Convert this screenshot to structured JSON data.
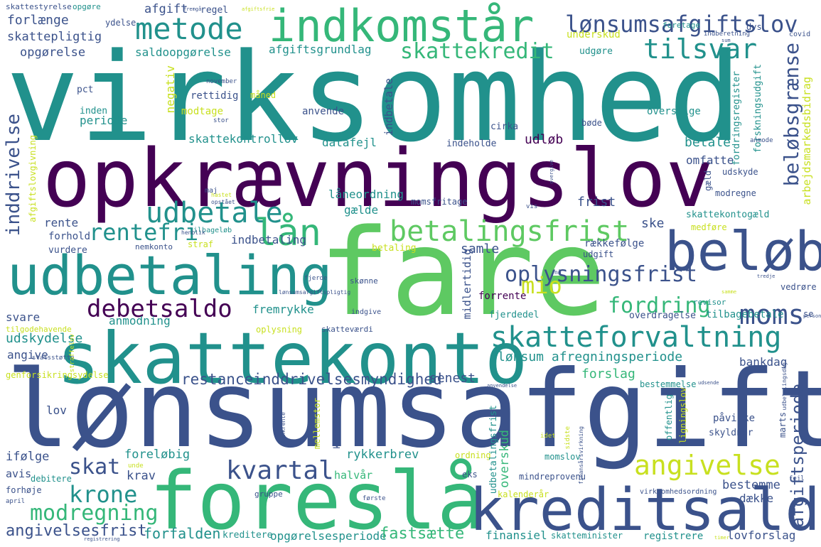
{
  "colors": {
    "dark_purple": "#440154",
    "indigo": "#3b528b",
    "teal": "#21918c",
    "green": "#5ec962",
    "lime": "#c8e020"
  },
  "words": [
    {
      "text": "virksomhed",
      "color": "#21918c"
    },
    {
      "text": "opkrævningslov",
      "color": "#440154"
    },
    {
      "text": "fare",
      "color": "#5ec962"
    },
    {
      "text": "lønsumsafgift",
      "color": "#3b528b"
    },
    {
      "text": "skattekonto",
      "color": "#21918c"
    },
    {
      "text": "foreslå",
      "color": "#35b779"
    },
    {
      "text": "kreditsaldo",
      "color": "#3b528b"
    },
    {
      "text": "indkomstår",
      "color": "#35b779"
    },
    {
      "text": "beløb",
      "color": "#3b528b"
    },
    {
      "text": "udbetaling",
      "color": "#21918c"
    },
    {
      "text": "betalingsfrist",
      "color": "#5ec962"
    },
    {
      "text": "skatteforvaltning",
      "color": "#21918c"
    },
    {
      "text": "lønsumsafgiftslov",
      "color": "#3b528b"
    },
    {
      "text": "metode",
      "color": "#21918c"
    },
    {
      "text": "tilsvar",
      "color": "#21918c"
    },
    {
      "text": "skattekredit",
      "color": "#35b779"
    },
    {
      "text": "lån",
      "color": "#35b779"
    },
    {
      "text": "udbetale",
      "color": "#21918c"
    },
    {
      "text": "rentefri",
      "color": "#21918c"
    },
    {
      "text": "debetsaldo",
      "color": "#440154"
    },
    {
      "text": "moms",
      "color": "#3b528b"
    },
    {
      "text": "oplysningsfrist",
      "color": "#3b528b"
    },
    {
      "text": "fordring",
      "color": "#35b779"
    },
    {
      "text": "angivelse",
      "color": "#c8e020"
    },
    {
      "text": "kvartal",
      "color": "#3b528b"
    },
    {
      "text": "krone",
      "color": "#21918c"
    },
    {
      "text": "modregning",
      "color": "#35b779"
    },
    {
      "text": "skat",
      "color": "#3b528b"
    },
    {
      "text": "mio",
      "color": "#c8e020"
    },
    {
      "text": "beløbsgrænse",
      "color": "#3b528b"
    },
    {
      "text": "inddrivelse",
      "color": "#3b528b"
    },
    {
      "text": "afgiftsperiode",
      "color": "#3b528b"
    },
    {
      "text": "restanceinddrivelsesmyndighed",
      "color": "#3b528b"
    },
    {
      "text": "lønsum afregningsperiode",
      "color": "#21918c"
    },
    {
      "text": "angivelsesfrist",
      "color": "#3b528b"
    },
    {
      "text": "forfalden",
      "color": "#21918c"
    },
    {
      "text": "opgørelsesperiode",
      "color": "#21918c"
    },
    {
      "text": "fastsætte",
      "color": "#35b779"
    },
    {
      "text": "afgiftsgrundlag",
      "color": "#21918c"
    },
    {
      "text": "saldoopgørelse",
      "color": "#21918c"
    },
    {
      "text": "skattepligtig",
      "color": "#3b528b"
    },
    {
      "text": "forlænge",
      "color": "#3b528b"
    },
    {
      "text": "opgørelse",
      "color": "#3b528b"
    },
    {
      "text": "afgift",
      "color": "#3b528b"
    },
    {
      "text": "regel",
      "color": "#3b528b"
    },
    {
      "text": "skattekontrollov",
      "color": "#21918c"
    },
    {
      "text": "datafejl",
      "color": "#21918c"
    },
    {
      "text": "indeholde",
      "color": "#3b528b"
    },
    {
      "text": "udløb",
      "color": "#440154"
    },
    {
      "text": "betale",
      "color": "#21918c"
    },
    {
      "text": "omfatte",
      "color": "#3b528b"
    },
    {
      "text": "låneordning",
      "color": "#21918c"
    },
    {
      "text": "gælde",
      "color": "#21918c"
    },
    {
      "text": "momsfritage",
      "color": "#3b528b"
    },
    {
      "text": "frist",
      "color": "#3b528b"
    },
    {
      "text": "ske",
      "color": "#3b528b"
    },
    {
      "text": "indbetaling",
      "color": "#3b528b"
    },
    {
      "text": "samle",
      "color": "#3b528b"
    },
    {
      "text": "rækkefølge",
      "color": "#3b528b"
    },
    {
      "text": "fremrykke",
      "color": "#21918c"
    },
    {
      "text": "anmodning",
      "color": "#21918c"
    },
    {
      "text": "udskydelse",
      "color": "#21918c"
    },
    {
      "text": "angive",
      "color": "#3b528b"
    },
    {
      "text": "bankdag",
      "color": "#3b528b"
    },
    {
      "text": "forslag",
      "color": "#35b779"
    },
    {
      "text": "senest",
      "color": "#3b528b"
    },
    {
      "text": "lov",
      "color": "#3b528b"
    },
    {
      "text": "foreløbig",
      "color": "#21918c"
    },
    {
      "text": "rykkerbrev",
      "color": "#21918c"
    },
    {
      "text": "overskud",
      "color": "#35b779"
    },
    {
      "text": "bestemme",
      "color": "#3b528b"
    },
    {
      "text": "dække",
      "color": "#3b528b"
    },
    {
      "text": "krav",
      "color": "#3b528b"
    },
    {
      "text": "halvår",
      "color": "#35b779"
    },
    {
      "text": "kreditere",
      "color": "#21918c"
    },
    {
      "text": "finansiel",
      "color": "#21918c"
    },
    {
      "text": "registrere",
      "color": "#21918c"
    },
    {
      "text": "lovforslag",
      "color": "#3b528b"
    },
    {
      "text": "ifølge",
      "color": "#3b528b"
    },
    {
      "text": "avis",
      "color": "#3b528b"
    },
    {
      "text": "svare",
      "color": "#3b528b"
    },
    {
      "text": "rente",
      "color": "#3b528b"
    },
    {
      "text": "forhold",
      "color": "#3b528b"
    },
    {
      "text": "vurdere",
      "color": "#3b528b"
    },
    {
      "text": "periode",
      "color": "#21918c"
    },
    {
      "text": "inden",
      "color": "#21918c"
    },
    {
      "text": "pct",
      "color": "#3b528b"
    },
    {
      "text": "negativ",
      "color": "#c8e020"
    },
    {
      "text": "rettidig",
      "color": "#3b528b"
    },
    {
      "text": "modtage",
      "color": "#c8e020"
    },
    {
      "text": "anvende",
      "color": "#3b528b"
    },
    {
      "text": "bøde",
      "color": "#3b528b"
    },
    {
      "text": "overstige",
      "color": "#21918c"
    },
    {
      "text": "cirka",
      "color": "#3b528b"
    },
    {
      "text": "udgøre",
      "color": "#21918c"
    },
    {
      "text": "underskud",
      "color": "#c8e020"
    },
    {
      "text": "foretage",
      "color": "#21918c"
    },
    {
      "text": "dvs",
      "color": "#3b528b"
    },
    {
      "text": "udskyde",
      "color": "#3b528b"
    },
    {
      "text": "modregne",
      "color": "#3b528b"
    },
    {
      "text": "skattekontogæld",
      "color": "#21918c"
    },
    {
      "text": "medføre",
      "color": "#c8e020"
    },
    {
      "text": "udgift",
      "color": "#3b528b"
    },
    {
      "text": "forrente",
      "color": "#440154"
    },
    {
      "text": "fjerdedel",
      "color": "#21918c"
    },
    {
      "text": "overdragelse",
      "color": "#3b528b"
    },
    {
      "text": "tilbagebetale",
      "color": "#21918c"
    },
    {
      "text": "revisor",
      "color": "#21918c"
    },
    {
      "text": "se",
      "color": "#3b528b"
    },
    {
      "text": "tilgodehavende",
      "color": "#c8e020"
    },
    {
      "text": "oplysning",
      "color": "#c8e020"
    },
    {
      "text": "skatteværdi",
      "color": "#3b528b"
    },
    {
      "text": "genforsikringsydelse",
      "color": "#c8e020"
    },
    {
      "text": "bestemmelse",
      "color": "#21918c"
    },
    {
      "text": "påvirke",
      "color": "#3b528b"
    },
    {
      "text": "skyldner",
      "color": "#3b528b"
    },
    {
      "text": "ordning",
      "color": "#c8e020"
    },
    {
      "text": "momslov",
      "color": "#21918c"
    },
    {
      "text": "mindreprovenu",
      "color": "#3b528b"
    },
    {
      "text": "kalenderår",
      "color": "#c8e020"
    },
    {
      "text": "skatteminister",
      "color": "#21918c"
    },
    {
      "text": "debitere",
      "color": "#21918c"
    },
    {
      "text": "forhøje",
      "color": "#3b528b"
    },
    {
      "text": "gruppe",
      "color": "#3b528b"
    },
    {
      "text": "eks",
      "color": "#3b528b"
    },
    {
      "text": "straf",
      "color": "#c8e020"
    },
    {
      "text": "nemkonto",
      "color": "#3b528b"
    },
    {
      "text": "betaling",
      "color": "#c8e020"
    },
    {
      "text": "skønne",
      "color": "#3b528b"
    },
    {
      "text": "indgive",
      "color": "#3b528b"
    },
    {
      "text": "skattestyrelse",
      "color": "#3b528b"
    },
    {
      "text": "opgøre",
      "color": "#21918c"
    },
    {
      "text": "ydelse",
      "color": "#3b528b"
    },
    {
      "text": "arbejdsmarkedsbidrag",
      "color": "#c8e020"
    },
    {
      "text": "forskningsudgift",
      "color": "#21918c"
    },
    {
      "text": "fordringsregister",
      "color": "#21918c"
    },
    {
      "text": "afgiftslovgivning",
      "color": "#c8e020"
    },
    {
      "text": "midlertidig",
      "color": "#3b528b"
    },
    {
      "text": "indbetale",
      "color": "#3b528b"
    },
    {
      "text": "offentlig",
      "color": "#21918c"
    },
    {
      "text": "ligningslov",
      "color": "#c8e020"
    },
    {
      "text": "konsekvens",
      "color": "#3b528b"
    },
    {
      "text": "mellemstor",
      "color": "#c8e020"
    },
    {
      "text": "udbetalingsfrist",
      "color": "#21918c"
    },
    {
      "text": "gæld",
      "color": "#3b528b"
    },
    {
      "text": "marts",
      "color": "#3b528b"
    },
    {
      "text": "virksomhedsordning",
      "color": "#3b528b"
    },
    {
      "text": "vedrøre",
      "color": "#3b528b"
    },
    {
      "text": "tilbageløb",
      "color": "#21918c"
    },
    {
      "text": "covid",
      "color": "#3b528b"
    },
    {
      "text": "indberetning",
      "color": "#3b528b"
    },
    {
      "text": "måned",
      "color": "#c8e020"
    },
    {
      "text": "november",
      "color": "#3b528b"
    },
    {
      "text": "stor",
      "color": "#3b528b"
    },
    {
      "text": "maj",
      "color": "#3b528b"
    },
    {
      "text": "fjerde",
      "color": "#3b528b"
    },
    {
      "text": "første",
      "color": "#3b528b"
    },
    {
      "text": "april",
      "color": "#3b528b"
    },
    {
      "text": "unde",
      "color": "#c8e020"
    },
    {
      "text": "fejl",
      "color": "#3b528b"
    },
    {
      "text": "vis",
      "color": "#3b528b"
    },
    {
      "text": "nå",
      "color": "#3b528b"
    },
    {
      "text": "sidste",
      "color": "#c8e020"
    },
    {
      "text": "idet",
      "color": "#c8e020"
    },
    {
      "text": "bankrente",
      "color": "#3b528b"
    },
    {
      "text": "statsstøtte",
      "color": "#3b528b"
    },
    {
      "text": "straffelov",
      "color": "#c8e020"
    },
    {
      "text": "henblik",
      "color": "#3b528b"
    },
    {
      "text": "opstået",
      "color": "#3b528b"
    },
    {
      "text": "hastet",
      "color": "#c8e020"
    },
    {
      "text": "lønsumsafgiftspligtig",
      "color": "#3b528b"
    },
    {
      "text": "fremgå",
      "color": "#3b528b"
    },
    {
      "text": "afgiftsfrie",
      "color": "#c8e020"
    },
    {
      "text": "sum",
      "color": "#3b528b"
    },
    {
      "text": "samme",
      "color": "#c8e020"
    },
    {
      "text": "finansårsvirkning",
      "color": "#3b528b"
    },
    {
      "text": "udsende",
      "color": "#3b528b"
    },
    {
      "text": "anvendelse",
      "color": "#3b528b"
    },
    {
      "text": "anmode",
      "color": "#3b528b"
    },
    {
      "text": "overgive",
      "color": "#3b528b"
    },
    {
      "text": "registrering",
      "color": "#3b528b"
    },
    {
      "text": "udbetalingsdag",
      "color": "#3b528b"
    },
    {
      "text": "tredje",
      "color": "#3b528b"
    },
    {
      "text": "person",
      "color": "#3b528b"
    },
    {
      "text": "timer",
      "color": "#c8e020"
    }
  ]
}
